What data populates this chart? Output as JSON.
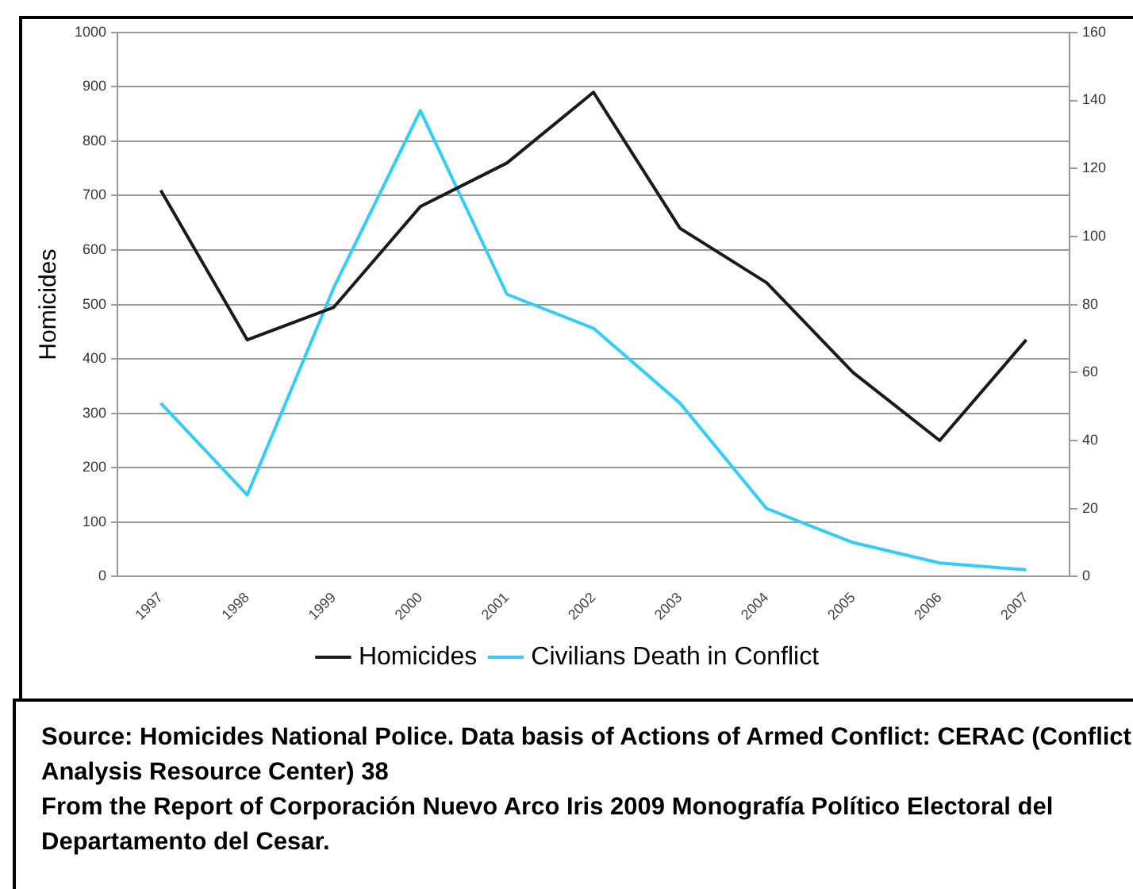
{
  "chart_data": {
    "type": "line",
    "ylabel": "Homicides",
    "categories": [
      "1997",
      "1998",
      "1999",
      "2000",
      "2001",
      "2002",
      "2003",
      "2004",
      "2005",
      "2006",
      "2007"
    ],
    "series": [
      {
        "name": "Homicides",
        "color": "#1a1a1a",
        "values": [
          710,
          435,
          495,
          680,
          760,
          890,
          640,
          540,
          375,
          250,
          435
        ]
      },
      {
        "name": "Civilians Death in Conflict",
        "color": "#33ccff",
        "axis": "y2",
        "values": [
          51,
          24,
          85,
          137,
          83,
          73,
          51,
          20,
          10,
          4,
          2
        ]
      }
    ],
    "ylim": [
      0,
      1000
    ],
    "yticks": [
      0,
      100,
      200,
      300,
      400,
      500,
      600,
      700,
      800,
      900,
      1000
    ],
    "y2lim": [
      0,
      160
    ],
    "y2ticks": [
      0,
      20,
      40,
      60,
      80,
      100,
      120,
      140,
      160
    ],
    "grid": "y",
    "legend": "bottom",
    "marker": "none",
    "line_style": "solid",
    "annotations": [
      "Source: Homicides National Police. Data basis of Actions of Armed Conflict: CERAC (Conflict Analysis Resource Center) 38",
      "From the Report of  Corporación Nuevo Arco Iris 2009 Monografía Político Electoral del  Departamento del Cesar."
    ]
  }
}
